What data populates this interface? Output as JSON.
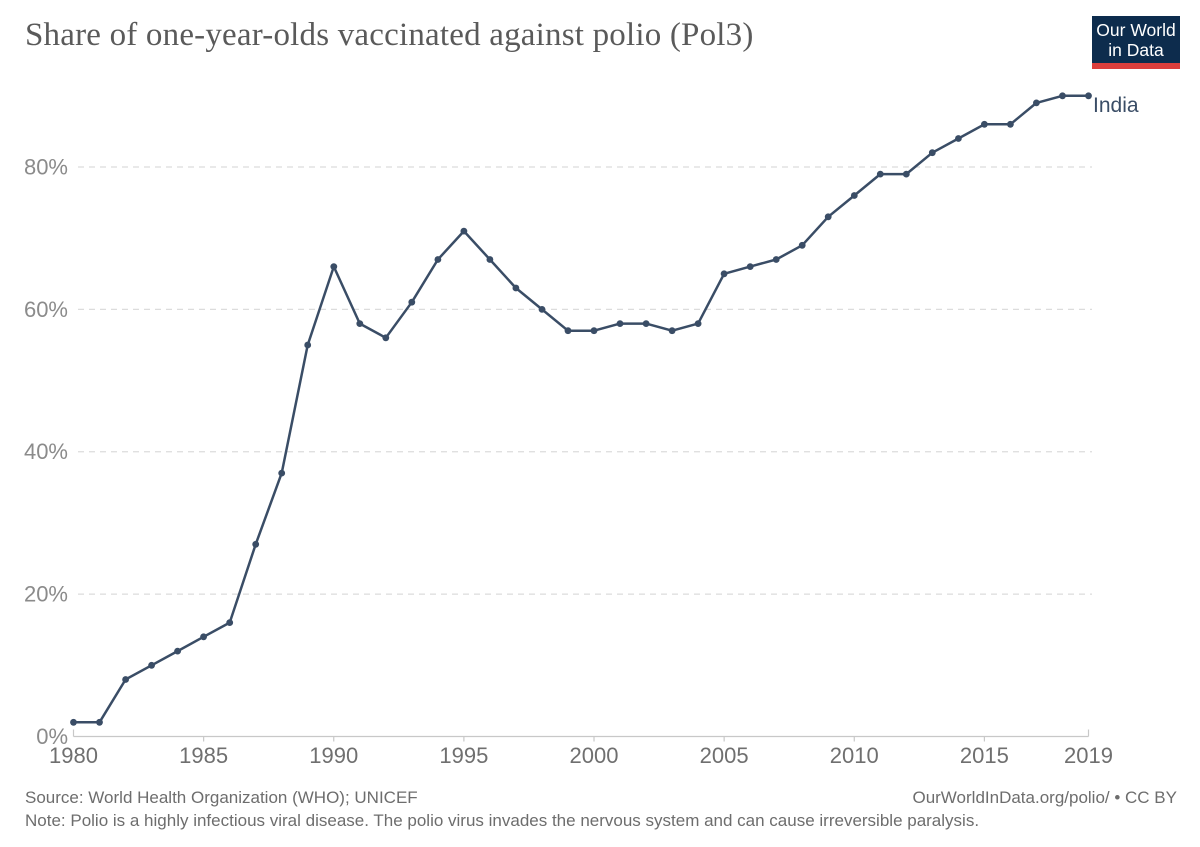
{
  "header": {
    "title": "Share of one-year-olds vaccinated against polio (Pol3)",
    "logo": {
      "line1": "Our World",
      "line2": "in Data"
    }
  },
  "chart_data": {
    "type": "line",
    "title": "Share of one-year-olds vaccinated against polio (Pol3)",
    "xlabel": "",
    "ylabel": "",
    "xlim": [
      1980,
      2019
    ],
    "ylim": [
      0,
      92
    ],
    "grid": "dashed-horizontal",
    "legend_position": "end-of-line",
    "x": [
      1980,
      1981,
      1982,
      1983,
      1984,
      1985,
      1986,
      1987,
      1988,
      1989,
      1990,
      1991,
      1992,
      1993,
      1994,
      1995,
      1996,
      1997,
      1998,
      1999,
      2000,
      2001,
      2002,
      2003,
      2004,
      2005,
      2006,
      2007,
      2008,
      2009,
      2010,
      2011,
      2012,
      2013,
      2014,
      2015,
      2016,
      2017,
      2018,
      2019
    ],
    "series": [
      {
        "name": "India",
        "x": [
          1980,
          1981,
          1982,
          1983,
          1984,
          1985,
          1986,
          1987,
          1988,
          1989,
          1990,
          1991,
          1992,
          1993,
          1994,
          1995,
          1996,
          1997,
          1998,
          1999,
          2000,
          2001,
          2002,
          2003,
          2004,
          2005,
          2006,
          2007,
          2008,
          2009,
          2010,
          2011,
          2012,
          2013,
          2014,
          2015,
          2016,
          2017,
          2018,
          2019
        ],
        "values": [
          2,
          2,
          8,
          10,
          12,
          14,
          16,
          27,
          37,
          55,
          66,
          58,
          56,
          61,
          67,
          71,
          67,
          63,
          60,
          57,
          57,
          58,
          58,
          57,
          58,
          65,
          66,
          67,
          69,
          73,
          76,
          79,
          79,
          82,
          84,
          86,
          86,
          89,
          90,
          90
        ]
      }
    ],
    "y_ticks": [
      {
        "v": 0,
        "label": "0%"
      },
      {
        "v": 20,
        "label": "20%"
      },
      {
        "v": 40,
        "label": "40%"
      },
      {
        "v": 60,
        "label": "60%"
      },
      {
        "v": 80,
        "label": "80%"
      }
    ],
    "x_ticks": [
      {
        "v": 1980,
        "label": "1980"
      },
      {
        "v": 1985,
        "label": "1985"
      },
      {
        "v": 1990,
        "label": "1990"
      },
      {
        "v": 1995,
        "label": "1995"
      },
      {
        "v": 2000,
        "label": "2000"
      },
      {
        "v": 2005,
        "label": "2005"
      },
      {
        "v": 2010,
        "label": "2010"
      },
      {
        "v": 2015,
        "label": "2015"
      },
      {
        "v": 2019,
        "label": "2019"
      }
    ],
    "colors": {
      "line": "#3a4d66",
      "grid": "#dcdcdc",
      "axis": "#c8c8c8",
      "y_label": "#8b8b8b",
      "x_label": "#6f6f6f",
      "series_label": "#3a4d66",
      "logo_bg": "#0d2c4d",
      "logo_red": "#dc3e3c"
    }
  },
  "footer": {
    "source": "Source: World Health Organization (WHO); UNICEF",
    "note": "Note: Polio is a highly infectious viral disease. The polio virus invades the nervous system and can cause irreversible paralysis.",
    "attribution": "OurWorldInData.org/polio/ • CC BY"
  }
}
